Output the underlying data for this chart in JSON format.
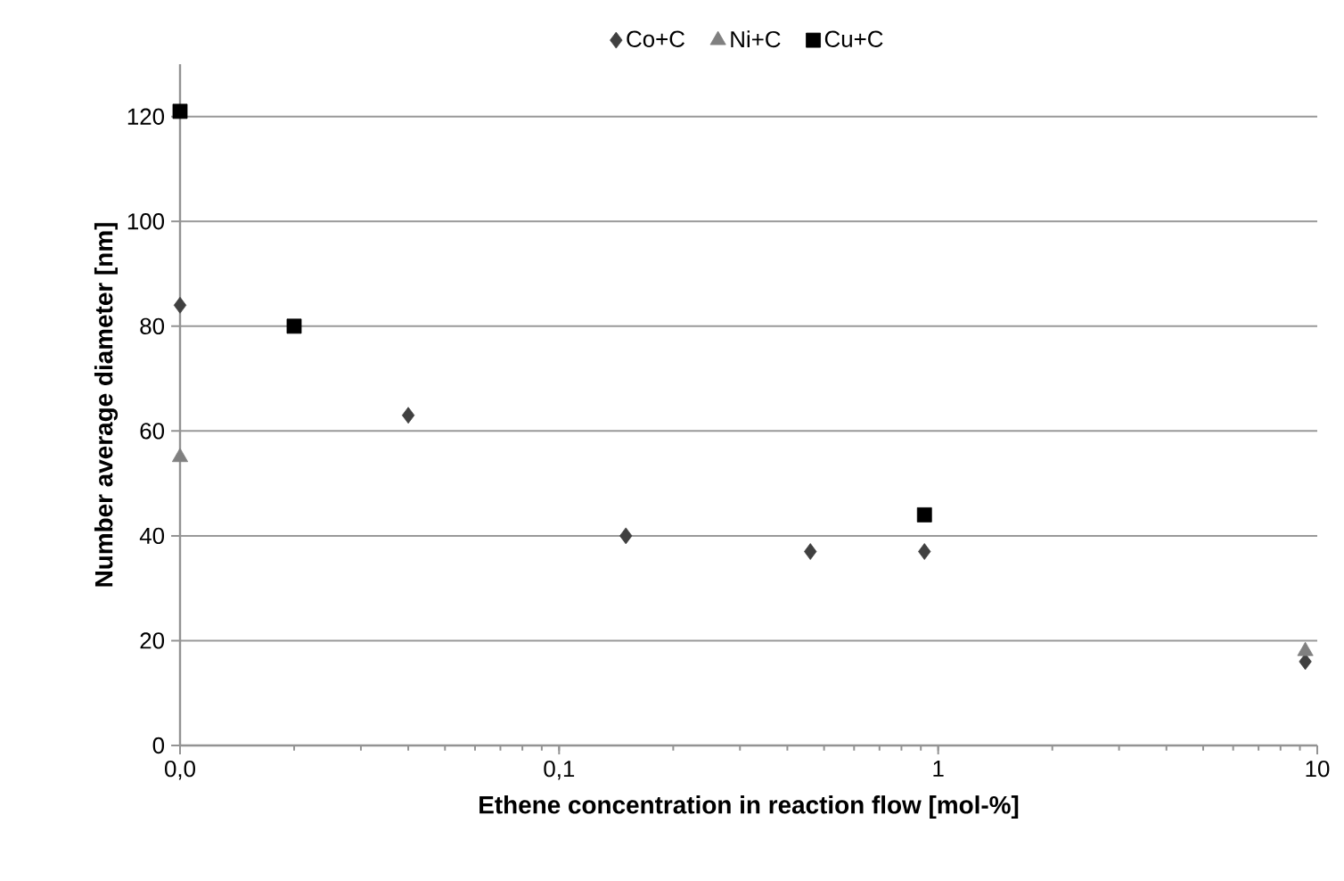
{
  "chart_data": {
    "type": "scatter",
    "xlabel": "Ethene concentration in reaction flow [mol-%]",
    "ylabel": "Number average diameter [nm]",
    "log": "x",
    "xlim": [
      0.01,
      10
    ],
    "xticks": [
      {
        "value": 0.01,
        "label": "0,0"
      },
      {
        "value": 0.1,
        "label": "0,1"
      },
      1,
      10
    ],
    "ylim": [
      0,
      130
    ],
    "yticks": [
      0,
      20,
      40,
      60,
      80,
      100,
      120
    ],
    "grid": "y",
    "legend": "top",
    "series": [
      {
        "name": "Co+C",
        "color": "#404040",
        "marker": "diamond",
        "x": [
          0.01,
          0.04,
          0.15,
          0.46,
          0.92,
          9.3
        ],
        "values": [
          84,
          63,
          40,
          37,
          37,
          16
        ]
      },
      {
        "name": "Ni+C",
        "color": "#808080",
        "marker": "triangle",
        "x": [
          0.01,
          9.3
        ],
        "values": [
          55,
          18
        ]
      },
      {
        "name": "Cu+C",
        "color": "#000000",
        "marker": "square",
        "x": [
          0.01,
          0.02,
          0.92
        ],
        "values": [
          121,
          80,
          44
        ]
      }
    ]
  }
}
